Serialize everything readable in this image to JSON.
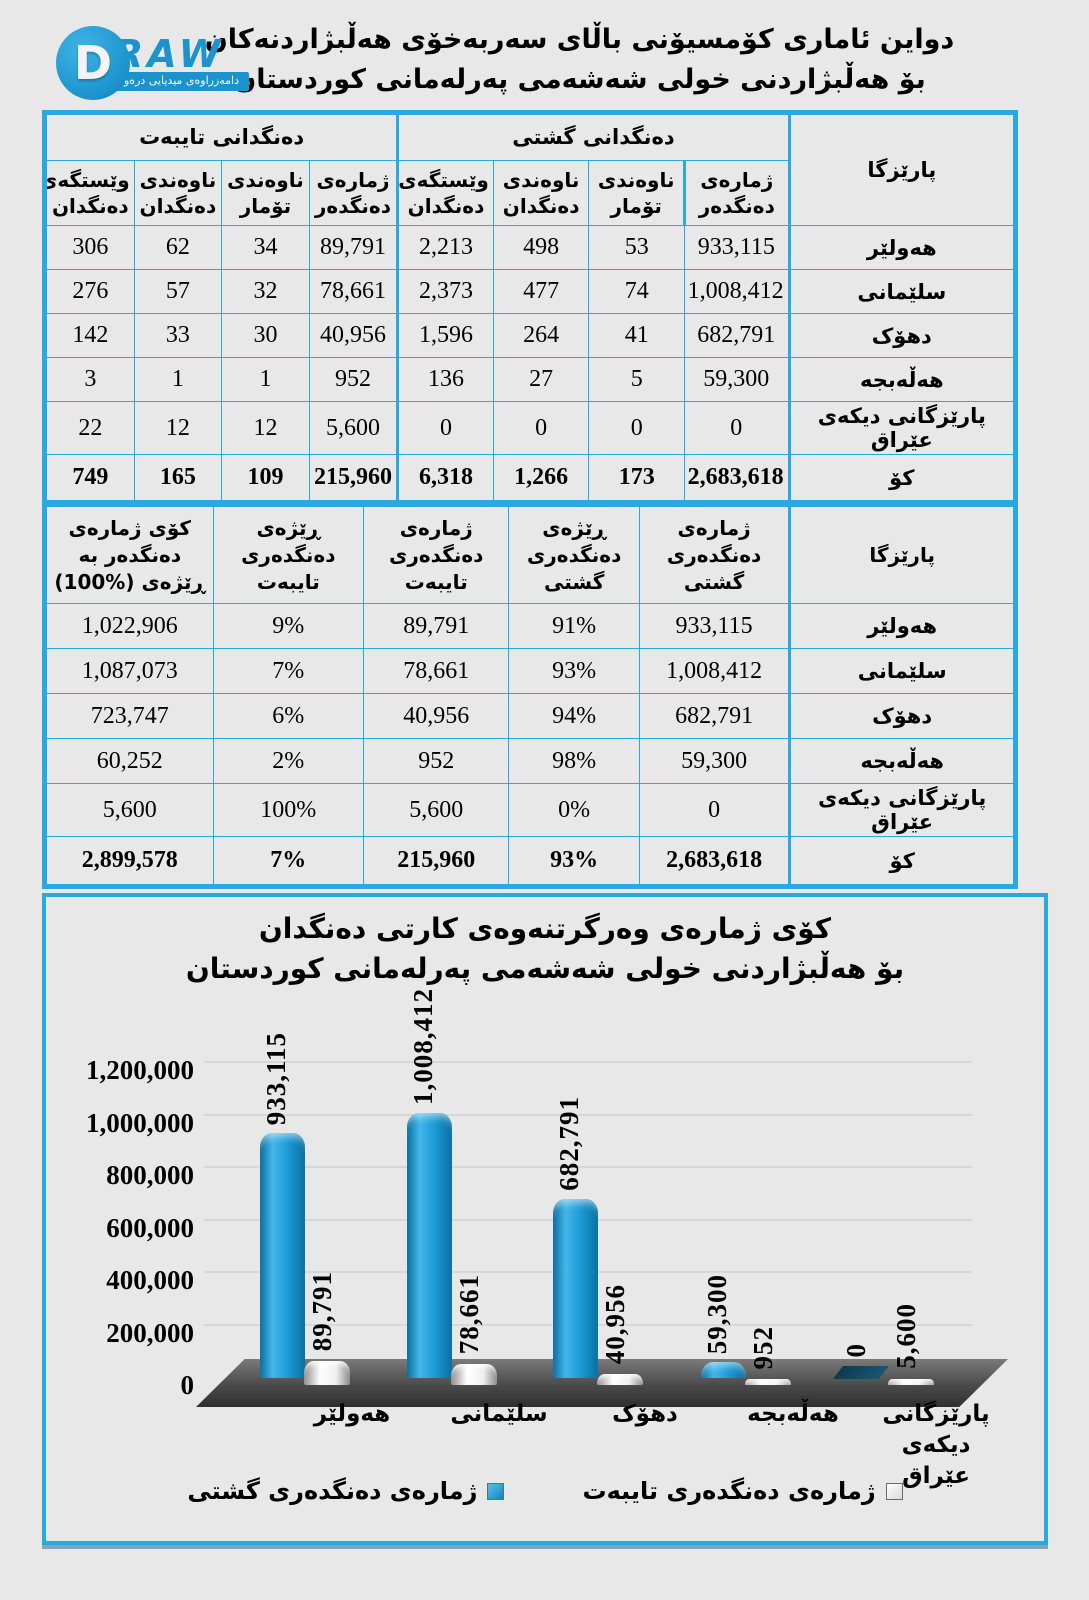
{
  "header": {
    "title_line1": "دواین ئاماری کۆمسیۆنی باڵای سەربەخۆی هەڵبژاردنەکان",
    "title_line2": "بۆ هەڵبژاردنی خولی شەشەمی پەرلەمانی کوردستان",
    "logo": {
      "letter": "D",
      "word": "RAW",
      "subtitle": "دامەزراوەی میدیایی درەو"
    }
  },
  "table1": {
    "col_province": "پارێزگا",
    "group_general": "دەنگدانی گشتی",
    "group_special": "دەنگدانی تایبەت",
    "subheaders": [
      "ژمارەی دەنگدەر",
      "ناوەندی تۆمار",
      "ناوەندی دەنگدان",
      "وێستگەی دەنگدان"
    ],
    "rows": [
      {
        "province": "هەولێر",
        "general": [
          "933,115",
          "53",
          "498",
          "2,213"
        ],
        "special": [
          "89,791",
          "34",
          "62",
          "306"
        ],
        "total": false
      },
      {
        "province": "سلێمانی",
        "general": [
          "1,008,412",
          "74",
          "477",
          "2,373"
        ],
        "special": [
          "78,661",
          "32",
          "57",
          "276"
        ],
        "total": false
      },
      {
        "province": "دهۆک",
        "general": [
          "682,791",
          "41",
          "264",
          "1,596"
        ],
        "special": [
          "40,956",
          "30",
          "33",
          "142"
        ],
        "total": false
      },
      {
        "province": "هەڵەبجە",
        "general": [
          "59,300",
          "5",
          "27",
          "136"
        ],
        "special": [
          "952",
          "1",
          "1",
          "3"
        ],
        "total": false
      },
      {
        "province": "پارێزگانی دیکەی عێراق",
        "general": [
          "0",
          "0",
          "0",
          "0"
        ],
        "special": [
          "5,600",
          "12",
          "12",
          "22"
        ],
        "total": false
      },
      {
        "province": "کۆ",
        "general": [
          "2,683,618",
          "173",
          "1,266",
          "6,318"
        ],
        "special": [
          "215,960",
          "109",
          "165",
          "749"
        ],
        "total": true
      }
    ]
  },
  "table2": {
    "headers": [
      "پارێزگا",
      "ژمارەی دەنگدەری گشتی",
      "ڕێژەی دەنگدەری گشتی",
      "ژمارەی دەنگدەری تایبەت",
      "ڕێژەی دەنگدەری تایبەت",
      "کۆی ژمارەی دەنگدەر بە ڕێژەی (%100)"
    ],
    "rows": [
      {
        "province": "هەولێر",
        "cells": [
          "933,115",
          "91%",
          "89,791",
          "9%",
          "1,022,906"
        ],
        "total": false
      },
      {
        "province": "سلێمانی",
        "cells": [
          "1,008,412",
          "93%",
          "78,661",
          "7%",
          "1,087,073"
        ],
        "total": false
      },
      {
        "province": "دهۆک",
        "cells": [
          "682,791",
          "94%",
          "40,956",
          "6%",
          "723,747"
        ],
        "total": false
      },
      {
        "province": "هەڵەبجە",
        "cells": [
          "59,300",
          "98%",
          "952",
          "2%",
          "60,252"
        ],
        "total": false
      },
      {
        "province": "پارێزگانی دیکەی عێراق",
        "cells": [
          "0",
          "0%",
          "5,600",
          "100%",
          "5,600"
        ],
        "total": false
      },
      {
        "province": "کۆ",
        "cells": [
          "2,683,618",
          "93%",
          "215,960",
          "7%",
          "2,899,578"
        ],
        "total": true
      }
    ]
  },
  "chart_data": {
    "type": "bar",
    "title_line1": "کۆی ژمارەی وەرگرتنەوەی کارتی دەنگدان",
    "title_line2": "بۆ هەڵبژاردنی خولی شەشەمی پەرلەمانی کوردستان",
    "categories": [
      "هەولێر",
      "سلێمانی",
      "دهۆک",
      "هەڵەبجە",
      "پارێزگانی دیکەی\nعێراق"
    ],
    "series": [
      {
        "name": "ژمارەی دەنگدەری گشتی",
        "color": "#1b9ad6",
        "values": [
          933115,
          1008412,
          682791,
          59300,
          0
        ],
        "labels": [
          "933,115",
          "1,008,412",
          "682,791",
          "59,300",
          "0"
        ]
      },
      {
        "name": "ژمارەی دەنگدەری تایبەت",
        "color": "#f2f2f2",
        "values": [
          89791,
          78661,
          40956,
          952,
          5600
        ],
        "labels": [
          "89,791",
          "78,661",
          "40,956",
          "952",
          "5,600"
        ]
      }
    ],
    "yticks": [
      {
        "v": 0,
        "label": "0"
      },
      {
        "v": 200000,
        "label": "200,000"
      },
      {
        "v": 400000,
        "label": "400,000"
      },
      {
        "v": 600000,
        "label": "600,000"
      },
      {
        "v": 800000,
        "label": "800,000"
      },
      {
        "v": 1000000,
        "label": "1,000,000"
      },
      {
        "v": 1200000,
        "label": "1,200,000"
      }
    ],
    "ylim": [
      0,
      1200000
    ],
    "grid": true,
    "legend_position": "bottom"
  }
}
